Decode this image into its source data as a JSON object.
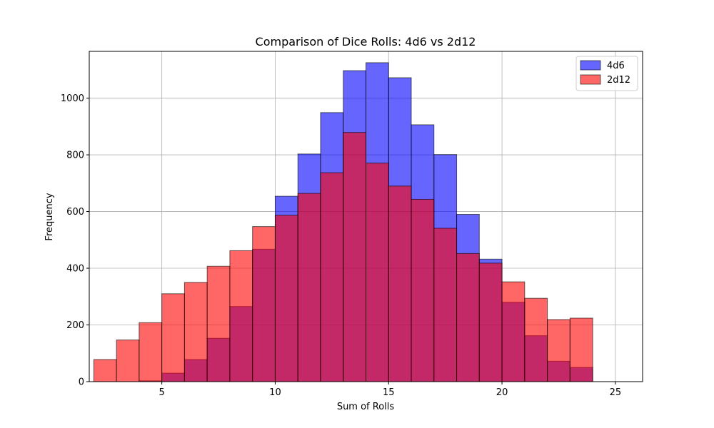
{
  "chart_data": {
    "type": "bar",
    "title": "Comparison of Dice Rolls: 4d6 vs 2d12",
    "xlabel": "Sum of Rolls",
    "ylabel": "Frequency",
    "xlim": [
      1.8,
      26.2
    ],
    "ylim": [
      0,
      1165
    ],
    "xticks": [
      5,
      10,
      15,
      20,
      25
    ],
    "yticks": [
      0,
      200,
      400,
      600,
      800,
      1000
    ],
    "grid": true,
    "legend_position": "top-right",
    "bin_edges": [
      2,
      3,
      4,
      5,
      6,
      7,
      8,
      9,
      10,
      11,
      12,
      13,
      14,
      15,
      16,
      17,
      18,
      19,
      20,
      21,
      22,
      23,
      24,
      25,
      26
    ],
    "series": [
      {
        "name": "4d6",
        "color": "#0000ff",
        "values": [
          0,
          0,
          3,
          30,
          78,
          153,
          265,
          467,
          654,
          803,
          949,
          1097,
          1125,
          1072,
          906,
          801,
          590,
          432,
          280,
          162,
          72,
          50,
          0,
          0
        ]
      },
      {
        "name": "2d12",
        "color": "#ff0000",
        "values": [
          78,
          147,
          208,
          310,
          350,
          407,
          462,
          547,
          587,
          664,
          737,
          879,
          771,
          690,
          643,
          541,
          452,
          418,
          352,
          294,
          219,
          224,
          0,
          0
        ]
      }
    ]
  }
}
